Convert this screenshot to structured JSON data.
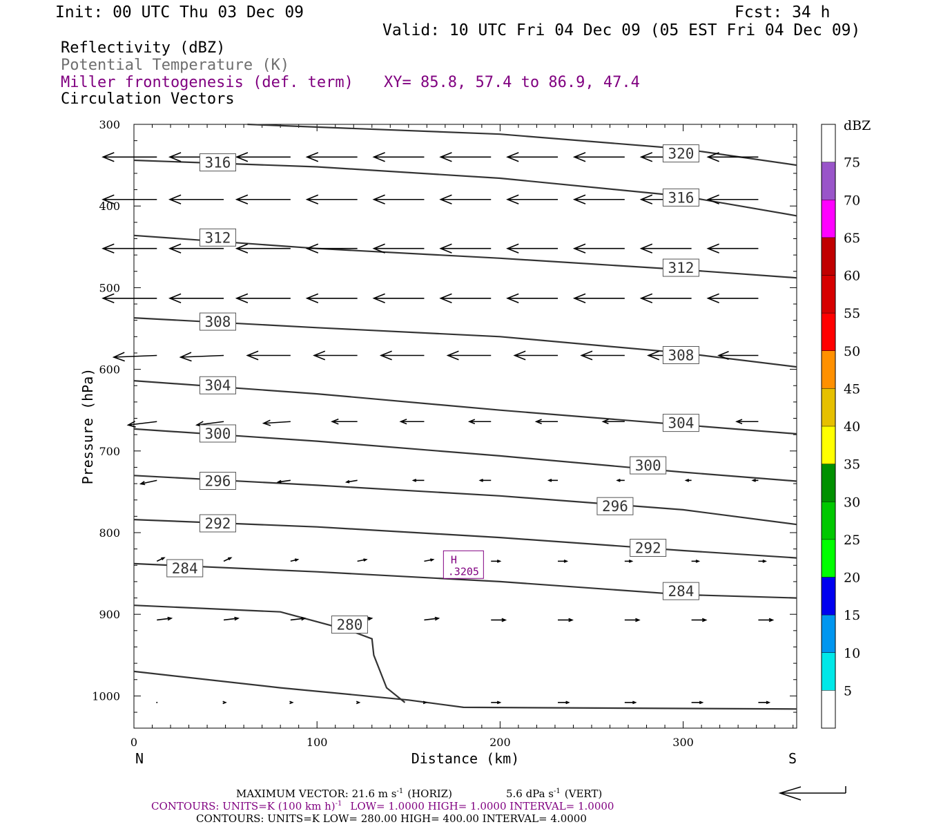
{
  "header": {
    "init": "Init: 00 UTC Thu 03 Dec 09",
    "fcst": "Fcst:   34 h",
    "valid": "Valid: 10 UTC Fri 04 Dec 09 (05 EST Fri 04 Dec 09)"
  },
  "fields": {
    "reflectivity": "Reflectivity (dBZ)",
    "theta": "Potential Temperature (K)",
    "miller": "Miller frontogenesis (def. term)",
    "xy": "XY=  85.8, 57.4 to  86.9, 47.4",
    "circ": "Circulation Vectors"
  },
  "colors": {
    "purple": "#800080",
    "contour": "#333333",
    "vector": "#000000"
  },
  "footer": {
    "maxvec_pre": "MAXIMUM VECTOR:  21.6 m s",
    "maxvec_horiz": "(HORIZ)",
    "maxvec_vert_pre": "5.6 dPa s",
    "maxvec_vert": "(VERT)",
    "exp_neg1": "-1",
    "contours1_pre": "CONTOURS:  UNITS=K (100 km h)",
    "contours1_post": "LOW=   1.0000      HIGH=   1.0000      INTERVAL=    1.0000",
    "contours2": "CONTOURS:  UNITS=K  LOW=   280.00      HIGH=   400.00      INTERVAL=    4.0000"
  },
  "chart_data": {
    "type": "cross-section",
    "xlabel": "Distance (km)",
    "ylabel": "Pressure (hPa)",
    "xlim": [
      0,
      362
    ],
    "ylim": [
      1040,
      300
    ],
    "x_ticks": [
      "0",
      "100",
      "200",
      "300"
    ],
    "y_ticks": [
      "300",
      "400",
      "500",
      "600",
      "700",
      "800",
      "900",
      "1000"
    ],
    "left_end": "N",
    "right_end": "S",
    "theta_contours": [
      {
        "value": 320,
        "points": [
          [
            62,
            300
          ],
          [
            200,
            312
          ],
          [
            300,
            330
          ],
          [
            362,
            350
          ]
        ]
      },
      {
        "value": 316,
        "points": [
          [
            0,
            344
          ],
          [
            100,
            352
          ],
          [
            200,
            366
          ],
          [
            300,
            388
          ],
          [
            362,
            412
          ]
        ]
      },
      {
        "value": 312,
        "points": [
          [
            0,
            436
          ],
          [
            100,
            452
          ],
          [
            200,
            464
          ],
          [
            300,
            478
          ],
          [
            362,
            488
          ]
        ]
      },
      {
        "value": 308,
        "points": [
          [
            0,
            537
          ],
          [
            100,
            549
          ],
          [
            200,
            560
          ],
          [
            300,
            580
          ],
          [
            362,
            597
          ]
        ]
      },
      {
        "value": 304,
        "points": [
          [
            0,
            614
          ],
          [
            100,
            630
          ],
          [
            200,
            650
          ],
          [
            300,
            668
          ],
          [
            362,
            679
          ]
        ]
      },
      {
        "value": 300,
        "points": [
          [
            0,
            673
          ],
          [
            100,
            688
          ],
          [
            200,
            706
          ],
          [
            300,
            726
          ],
          [
            362,
            737
          ]
        ]
      },
      {
        "value": 296,
        "points": [
          [
            0,
            730
          ],
          [
            100,
            742
          ],
          [
            200,
            755
          ],
          [
            300,
            772
          ],
          [
            362,
            790
          ]
        ]
      },
      {
        "value": 292,
        "points": [
          [
            0,
            784
          ],
          [
            100,
            793
          ],
          [
            200,
            806
          ],
          [
            300,
            822
          ],
          [
            362,
            831
          ]
        ]
      },
      {
        "value": 284,
        "points": [
          [
            0,
            838
          ],
          [
            100,
            848
          ],
          [
            200,
            860
          ],
          [
            300,
            876
          ],
          [
            362,
            880
          ]
        ]
      },
      {
        "value": 280,
        "points": [
          [
            0,
            889
          ],
          [
            80,
            897
          ],
          [
            118,
            920
          ],
          [
            130,
            930
          ],
          [
            131,
            950
          ],
          [
            138,
            990
          ],
          [
            148,
            1008
          ]
        ]
      },
      {
        "value": null,
        "points": [
          [
            0,
            970
          ],
          [
            80,
            990
          ],
          [
            150,
            1005
          ],
          [
            180,
            1014
          ],
          [
            362,
            1016
          ]
        ]
      }
    ],
    "contour_labels": [
      {
        "value": "320",
        "x": 289,
        "p": 336
      },
      {
        "value": "316",
        "x": 36,
        "p": 347
      },
      {
        "value": "316",
        "x": 289,
        "p": 390
      },
      {
        "value": "312",
        "x": 36,
        "p": 439
      },
      {
        "value": "312",
        "x": 289,
        "p": 476
      },
      {
        "value": "308",
        "x": 36,
        "p": 542
      },
      {
        "value": "308",
        "x": 289,
        "p": 583
      },
      {
        "value": "304",
        "x": 36,
        "p": 620
      },
      {
        "value": "304",
        "x": 289,
        "p": 666
      },
      {
        "value": "300",
        "x": 36,
        "p": 679
      },
      {
        "value": "300",
        "x": 271,
        "p": 718
      },
      {
        "value": "296",
        "x": 36,
        "p": 737
      },
      {
        "value": "296",
        "x": 253,
        "p": 768
      },
      {
        "value": "292",
        "x": 36,
        "p": 789
      },
      {
        "value": "292",
        "x": 271,
        "p": 819
      },
      {
        "value": "284",
        "x": 18,
        "p": 844
      },
      {
        "value": "284",
        "x": 289,
        "p": 872
      },
      {
        "value": "280",
        "x": 108,
        "p": 913
      }
    ],
    "max_label": {
      "symbol": "H",
      "value": ".3205",
      "x": 180,
      "p": 840
    },
    "vector_rows": [
      {
        "p": 340,
        "u": [
          -30,
          -30,
          -30,
          -28,
          -28,
          -28,
          -28,
          -28,
          -28,
          -28
        ],
        "w": [
          0,
          0,
          0,
          0,
          0,
          0,
          0,
          0,
          0,
          0
        ]
      },
      {
        "p": 392,
        "u": [
          -30,
          -30,
          -30,
          -28,
          -28,
          -28,
          -28,
          -28,
          -28,
          -28
        ],
        "w": [
          0,
          0,
          0,
          0,
          0,
          0,
          0,
          0,
          0,
          0
        ]
      },
      {
        "p": 452,
        "u": [
          -30,
          -30,
          -30,
          -28,
          -28,
          -28,
          -28,
          -28,
          -28,
          -28
        ],
        "w": [
          0,
          0,
          0,
          0,
          0,
          0,
          0,
          0,
          0,
          0
        ]
      },
      {
        "p": 513,
        "u": [
          -30,
          -30,
          -30,
          -28,
          -28,
          -28,
          -28,
          -28,
          -28,
          -28
        ],
        "w": [
          0,
          0,
          0,
          0,
          0,
          0,
          0,
          0,
          0,
          0
        ]
      },
      {
        "p": 583,
        "u": [
          -24,
          -24,
          -24,
          -24,
          -24,
          -24,
          -24,
          -24,
          -24,
          -22
        ],
        "w": [
          -1,
          -1,
          0,
          0,
          0,
          0,
          0,
          0,
          0,
          0
        ]
      },
      {
        "p": 664,
        "u": [
          -16,
          -15,
          -15,
          -14,
          -13,
          -12,
          -12,
          -12,
          -12,
          -12
        ],
        "w": [
          -2,
          -2,
          -1,
          0,
          0,
          0,
          0,
          0,
          0,
          0
        ]
      },
      {
        "p": 736,
        "u": [
          -9,
          -8,
          -7,
          -6,
          -6,
          -6,
          -5,
          -4,
          -3,
          -3
        ],
        "w": [
          -2,
          -1,
          -1,
          -1,
          0,
          0,
          0,
          0,
          0,
          0
        ]
      },
      {
        "p": 835,
        "u": [
          4,
          4,
          4,
          5,
          5,
          5,
          5,
          4,
          4,
          4
        ],
        "w": [
          2,
          2,
          1,
          1,
          1,
          0,
          0,
          0,
          0,
          0
        ]
      },
      {
        "p": 907,
        "u": [
          8,
          8,
          8,
          8,
          8,
          8,
          8,
          8,
          8,
          8
        ],
        "w": [
          1,
          1,
          1,
          1,
          1,
          0,
          0,
          0,
          0,
          0
        ]
      },
      {
        "p": 1008,
        "u": [
          0,
          1,
          1,
          1,
          1,
          5,
          6,
          6,
          6,
          6
        ],
        "w": [
          0,
          0,
          0,
          0,
          0,
          0,
          0,
          0,
          0,
          0
        ]
      }
    ],
    "colorbar": {
      "title": "dBZ",
      "levels": [
        "5",
        "10",
        "15",
        "20",
        "25",
        "30",
        "35",
        "40",
        "45",
        "50",
        "55",
        "60",
        "65",
        "70",
        "75"
      ],
      "colors": [
        "#00e8e8",
        "#0096f0",
        "#0000f0",
        "#00ff00",
        "#00c800",
        "#009000",
        "#ffff00",
        "#e6c000",
        "#ff9000",
        "#ff0000",
        "#d60000",
        "#c00000",
        "#ff00ff",
        "#9955c9",
        "#ffffff"
      ]
    }
  }
}
